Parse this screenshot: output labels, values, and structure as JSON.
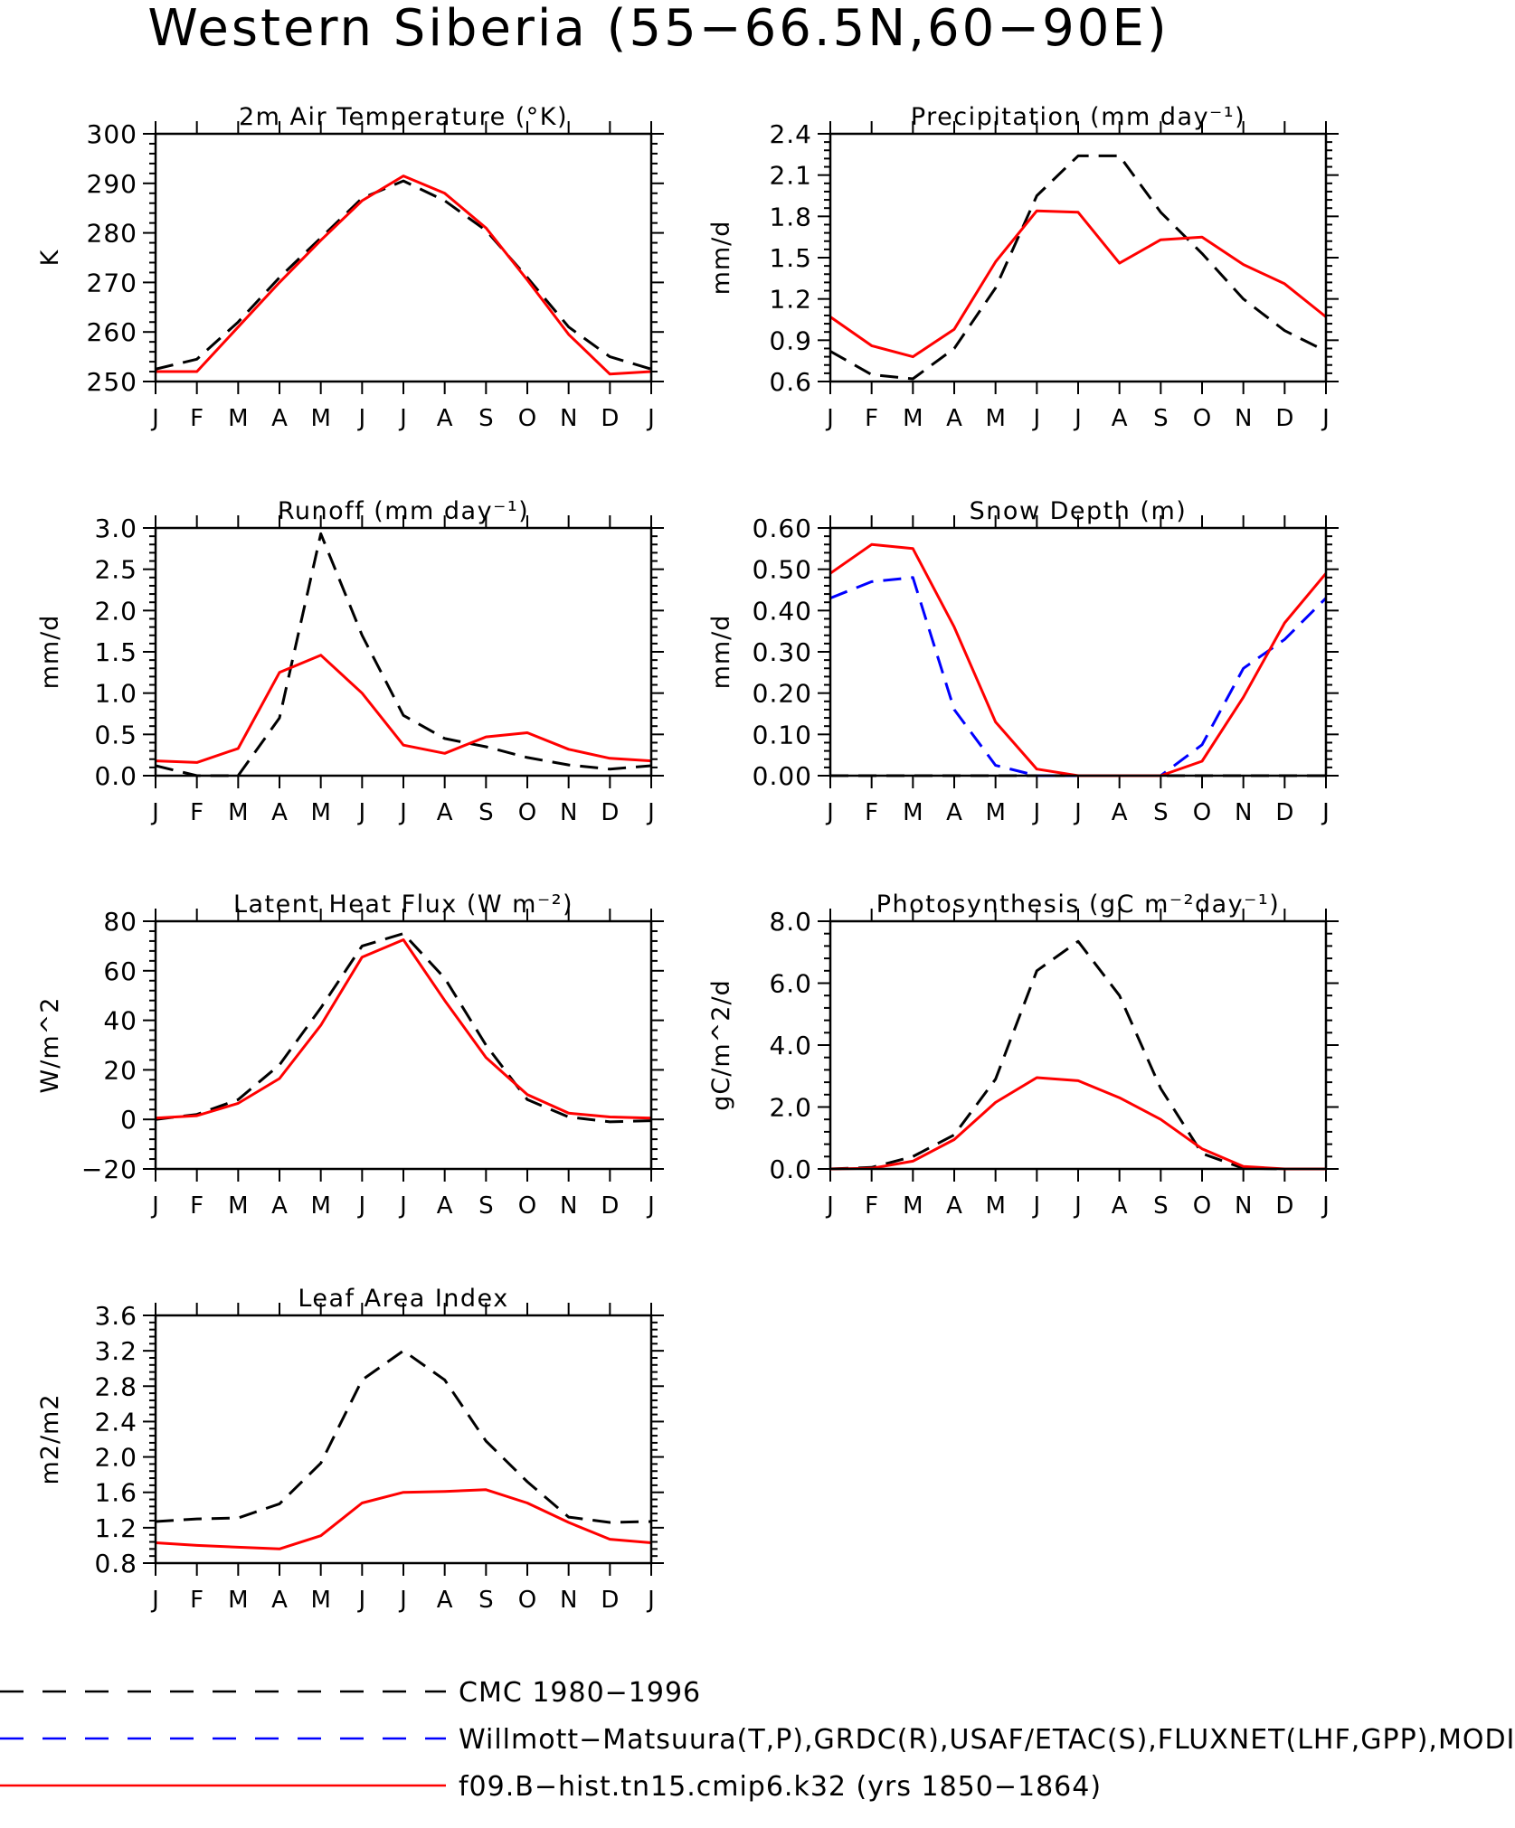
{
  "figure": {
    "title": "Western Siberia (55−66.5N,60−90E)",
    "legend": [
      {
        "label": "CMC 1980−1996",
        "color": "#000000",
        "dash": "long-dash"
      },
      {
        "label": "Willmott−Matsuura(T,P),GRDC(R),USAF/ETAC(S),FLUXNET(LHF,GPP),MODIS(LAI)",
        "color": "#0000ff",
        "dash": "long-dash"
      },
      {
        "label": "f09.B−hist.tn15.cmip6.k32 (yrs 1850−1864)",
        "color": "#ff0000",
        "dash": "solid"
      }
    ]
  },
  "chart_data": [
    {
      "type": "line",
      "title": "2m Air Temperature (°K)",
      "ylabel": "K",
      "ylim": [
        250,
        300
      ],
      "yticks": [
        "250",
        "260",
        "270",
        "280",
        "290",
        "300"
      ],
      "categories": [
        "J",
        "F",
        "M",
        "A",
        "M",
        "J",
        "J",
        "A",
        "S",
        "O",
        "N",
        "D",
        "J"
      ],
      "series": [
        {
          "color": "#000000",
          "dash": "dashed",
          "values": [
            252.5,
            254.5,
            262,
            271,
            279,
            287,
            290.5,
            286.5,
            280.5,
            271,
            261,
            255,
            252.5
          ]
        },
        {
          "color": "#ff0000",
          "dash": "solid",
          "values": [
            252,
            252,
            261,
            270,
            278.5,
            286.5,
            291.5,
            288,
            281,
            270.5,
            259.5,
            251.5,
            252
          ]
        }
      ]
    },
    {
      "type": "line",
      "title": "Precipitation (mm day⁻¹)",
      "ylabel": "mm/d",
      "ylim": [
        0.6,
        2.4
      ],
      "yticks": [
        "0.6",
        "0.9",
        "1.2",
        "1.5",
        "1.8",
        "2.1",
        "2.4"
      ],
      "categories": [
        "J",
        "F",
        "M",
        "A",
        "M",
        "J",
        "J",
        "A",
        "S",
        "O",
        "N",
        "D",
        "J"
      ],
      "series": [
        {
          "color": "#000000",
          "dash": "dashed",
          "values": [
            0.82,
            0.65,
            0.62,
            0.84,
            1.28,
            1.95,
            2.24,
            2.24,
            1.83,
            1.53,
            1.2,
            0.97,
            0.82
          ]
        },
        {
          "color": "#ff0000",
          "dash": "solid",
          "values": [
            1.07,
            0.86,
            0.78,
            0.98,
            1.47,
            1.84,
            1.83,
            1.46,
            1.63,
            1.65,
            1.45,
            1.31,
            1.07
          ]
        }
      ]
    },
    {
      "type": "line",
      "title": "Runoff (mm day⁻¹)",
      "ylabel": "mm/d",
      "ylim": [
        0,
        3.0
      ],
      "yticks": [
        "0.0",
        "0.5",
        "1.0",
        "1.5",
        "2.0",
        "2.5",
        "3.0"
      ],
      "categories": [
        "J",
        "F",
        "M",
        "A",
        "M",
        "J",
        "J",
        "A",
        "S",
        "O",
        "N",
        "D",
        "J"
      ],
      "series": [
        {
          "color": "#000000",
          "dash": "dashed",
          "values": [
            0.12,
            0.0,
            0.0,
            0.7,
            2.93,
            1.7,
            0.73,
            0.45,
            0.35,
            0.22,
            0.13,
            0.08,
            0.12
          ]
        },
        {
          "color": "#ff0000",
          "dash": "solid",
          "values": [
            0.18,
            0.16,
            0.33,
            1.25,
            1.46,
            1.0,
            0.37,
            0.27,
            0.47,
            0.52,
            0.32,
            0.21,
            0.18
          ]
        }
      ]
    },
    {
      "type": "line",
      "title": "Snow Depth (m)",
      "ylabel": "mm/d",
      "ylim": [
        0,
        0.6
      ],
      "yticks": [
        "0.00",
        "0.10",
        "0.20",
        "0.30",
        "0.40",
        "0.50",
        "0.60"
      ],
      "categories": [
        "J",
        "F",
        "M",
        "A",
        "M",
        "J",
        "J",
        "A",
        "S",
        "O",
        "N",
        "D",
        "J"
      ],
      "series": [
        {
          "color": "#000000",
          "dash": "dashed",
          "values": [
            0,
            0,
            0,
            0,
            0,
            0,
            0,
            0,
            0,
            0,
            0,
            0,
            0
          ]
        },
        {
          "color": "#0000ff",
          "dash": "dashed",
          "values": [
            0.43,
            0.47,
            0.48,
            0.16,
            0.025,
            0.0,
            0.0,
            0.0,
            0.0,
            0.075,
            0.26,
            0.33,
            0.43
          ]
        },
        {
          "color": "#ff0000",
          "dash": "solid",
          "values": [
            0.49,
            0.56,
            0.55,
            0.36,
            0.13,
            0.016,
            0.0,
            0.0,
            0.0,
            0.035,
            0.19,
            0.37,
            0.49
          ]
        }
      ]
    },
    {
      "type": "line",
      "title": "Latent Heat Flux (W m⁻²)",
      "ylabel": "W/m^2",
      "ylim": [
        -20,
        80
      ],
      "yticks": [
        "−20",
        "0",
        "20",
        "40",
        "60",
        "80"
      ],
      "categories": [
        "J",
        "F",
        "M",
        "A",
        "M",
        "J",
        "J",
        "A",
        "S",
        "O",
        "N",
        "D",
        "J"
      ],
      "series": [
        {
          "color": "#000000",
          "dash": "dashed",
          "values": [
            0,
            2,
            8,
            22,
            45,
            70,
            75,
            57,
            30,
            8,
            1,
            -1,
            -0.5
          ]
        },
        {
          "color": "#ff0000",
          "dash": "solid",
          "values": [
            0.5,
            1.5,
            6.5,
            16.5,
            38,
            65.5,
            72.5,
            48,
            25,
            10,
            2.5,
            1,
            0.5
          ]
        }
      ]
    },
    {
      "type": "line",
      "title": "Photosynthesis (gC m⁻²day⁻¹)",
      "ylabel": "gC/m^2/d",
      "ylim": [
        0,
        8.0
      ],
      "yticks": [
        "0.0",
        "2.0",
        "4.0",
        "6.0",
        "8.0"
      ],
      "categories": [
        "J",
        "F",
        "M",
        "A",
        "M",
        "J",
        "J",
        "A",
        "S",
        "O",
        "N",
        "D",
        "J"
      ],
      "series": [
        {
          "color": "#000000",
          "dash": "dashed",
          "values": [
            0,
            0.05,
            0.4,
            1.1,
            2.9,
            6.4,
            7.35,
            5.6,
            2.6,
            0.5,
            0.02,
            0,
            0
          ]
        },
        {
          "color": "#ff0000",
          "dash": "solid",
          "values": [
            0,
            0.02,
            0.25,
            0.95,
            2.15,
            2.95,
            2.85,
            2.3,
            1.6,
            0.65,
            0.08,
            0,
            0
          ]
        }
      ]
    },
    {
      "type": "line",
      "title": "Leaf Area Index",
      "ylabel": "m2/m2",
      "ylim": [
        0.8,
        3.6
      ],
      "yticks": [
        "0.8",
        "1.2",
        "1.6",
        "2.0",
        "2.4",
        "2.8",
        "3.2",
        "3.6"
      ],
      "categories": [
        "J",
        "F",
        "M",
        "A",
        "M",
        "J",
        "J",
        "A",
        "S",
        "O",
        "N",
        "D",
        "J"
      ],
      "series": [
        {
          "color": "#000000",
          "dash": "dashed",
          "values": [
            1.27,
            1.3,
            1.31,
            1.47,
            1.93,
            2.87,
            3.2,
            2.87,
            2.18,
            1.72,
            1.32,
            1.26,
            1.27
          ]
        },
        {
          "color": "#ff0000",
          "dash": "solid",
          "values": [
            1.03,
            1.0,
            0.98,
            0.96,
            1.11,
            1.48,
            1.6,
            1.61,
            1.63,
            1.48,
            1.26,
            1.07,
            1.03
          ]
        }
      ]
    }
  ]
}
